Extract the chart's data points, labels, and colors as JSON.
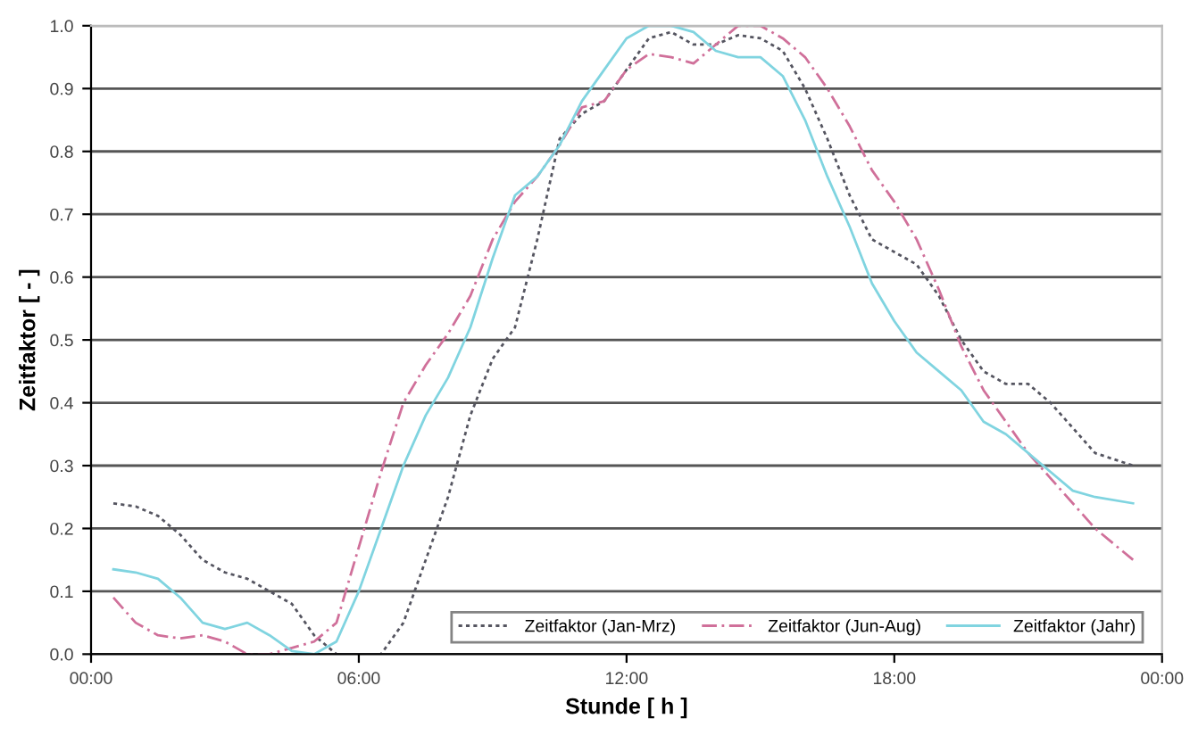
{
  "chart_data": {
    "type": "line",
    "xlabel": "Stunde [ h ]",
    "ylabel": "Zeitfaktor [ - ]",
    "xlim": [
      0,
      24
    ],
    "ylim": [
      0,
      1
    ],
    "xticks": [
      {
        "value": 0,
        "label": "00:00"
      },
      {
        "value": 6,
        "label": "06:00"
      },
      {
        "value": 12,
        "label": "12:00"
      },
      {
        "value": 18,
        "label": "18:00"
      },
      {
        "value": 24,
        "label": "00:00"
      }
    ],
    "yticks": [
      {
        "value": 0,
        "label": "0.0"
      },
      {
        "value": 0.1,
        "label": "0.1"
      },
      {
        "value": 0.2,
        "label": "0.2"
      },
      {
        "value": 0.3,
        "label": "0.3"
      },
      {
        "value": 0.4,
        "label": "0.4"
      },
      {
        "value": 0.5,
        "label": "0.5"
      },
      {
        "value": 0.6,
        "label": "0.6"
      },
      {
        "value": 0.7,
        "label": "0.7"
      },
      {
        "value": 0.8,
        "label": "0.8"
      },
      {
        "value": 0.9,
        "label": "0.9"
      },
      {
        "value": 1,
        "label": "1.0"
      }
    ],
    "grid": "y",
    "legend": "bottom right",
    "marker": "none",
    "x": [
      0.5,
      1,
      1.5,
      2,
      2.5,
      3,
      3.5,
      4,
      4.5,
      5,
      5.5,
      6,
      6.5,
      7,
      7.5,
      8,
      8.5,
      9,
      9.5,
      10,
      10.5,
      11,
      11.5,
      12,
      12.5,
      13,
      13.5,
      14,
      14.5,
      15,
      15.5,
      16,
      16.5,
      17,
      17.5,
      18,
      18.5,
      19,
      19.5,
      20,
      20.5,
      21,
      21.5,
      22,
      22.5,
      23.35
    ],
    "series": [
      {
        "name": "Zeitfaktor (Jan-Mrz)",
        "color": "#555560",
        "line_style": "dotted",
        "values": [
          0.24,
          0.235,
          0.22,
          0.19,
          0.15,
          0.13,
          0.12,
          0.1,
          0.08,
          0.03,
          0.0,
          0.0,
          0.0,
          0.05,
          0.15,
          0.25,
          0.38,
          0.47,
          0.52,
          0.66,
          0.82,
          0.86,
          0.88,
          0.93,
          0.98,
          0.99,
          0.97,
          0.97,
          0.985,
          0.98,
          0.96,
          0.9,
          0.82,
          0.73,
          0.66,
          0.64,
          0.62,
          0.57,
          0.5,
          0.45,
          0.43,
          0.43,
          0.4,
          0.36,
          0.32,
          0.3
        ]
      },
      {
        "name": "Zeitfaktor (Jun-Aug)",
        "color": "#d0709a",
        "line_style": "dashed",
        "values": [
          0.09,
          0.05,
          0.03,
          0.025,
          0.03,
          0.02,
          0.0,
          0.0,
          0.01,
          0.02,
          0.05,
          0.17,
          0.29,
          0.4,
          0.46,
          0.51,
          0.57,
          0.66,
          0.72,
          0.76,
          0.81,
          0.87,
          0.88,
          0.93,
          0.955,
          0.95,
          0.94,
          0.97,
          1.0,
          1.0,
          0.98,
          0.95,
          0.9,
          0.84,
          0.77,
          0.72,
          0.66,
          0.58,
          0.49,
          0.42,
          0.37,
          0.32,
          0.28,
          0.24,
          0.2,
          0.15
        ]
      },
      {
        "name": "Zeitfaktor (Jahr)",
        "color": "#80d4e0",
        "line_style": "solid",
        "values": [
          0.135,
          0.13,
          0.12,
          0.09,
          0.05,
          0.04,
          0.05,
          0.03,
          0.005,
          0.0,
          0.02,
          0.1,
          0.2,
          0.3,
          0.38,
          0.44,
          0.52,
          0.63,
          0.73,
          0.76,
          0.81,
          0.88,
          0.93,
          0.98,
          1.0,
          1.0,
          0.99,
          0.96,
          0.95,
          0.95,
          0.92,
          0.85,
          0.76,
          0.68,
          0.59,
          0.53,
          0.48,
          0.45,
          0.42,
          0.37,
          0.35,
          0.32,
          0.29,
          0.26,
          0.25,
          0.24
        ]
      }
    ]
  }
}
